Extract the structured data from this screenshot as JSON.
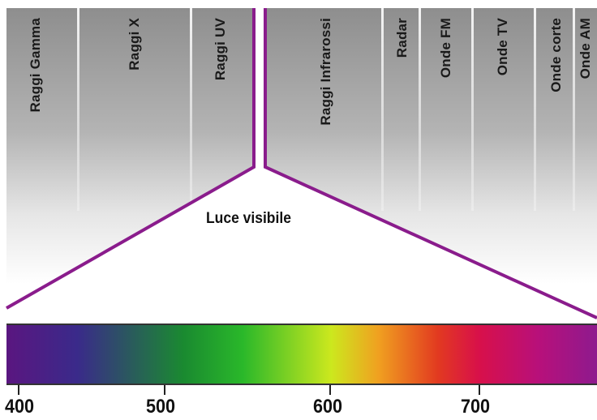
{
  "bands": [
    {
      "id": "gamma",
      "label": "Raggi Gamma"
    },
    {
      "id": "x",
      "label": "Raggi X"
    },
    {
      "id": "uv",
      "label": "Raggi UV"
    },
    {
      "id": "ir",
      "label": "Raggi Infrarossi"
    },
    {
      "id": "radar",
      "label": "Radar"
    },
    {
      "id": "fm",
      "label": "Onde FM"
    },
    {
      "id": "tv",
      "label": "Onde TV"
    },
    {
      "id": "short",
      "label": "Onde corte"
    },
    {
      "id": "am",
      "label": "Onde AM"
    }
  ],
  "visible_label": "Luce visibile",
  "wavelength_ticks": [
    "400",
    "500",
    "600",
    "700"
  ],
  "colors": {
    "outline": "#8a1c8c",
    "background_gray": "#9a9a9a",
    "spectrum": [
      "#5a1680",
      "#3a2a8a",
      "#1a8a30",
      "#2ab82a",
      "#cce81e",
      "#f0a020",
      "#e23a20",
      "#d8104a",
      "#b8107a",
      "#8e1a8e"
    ]
  }
}
